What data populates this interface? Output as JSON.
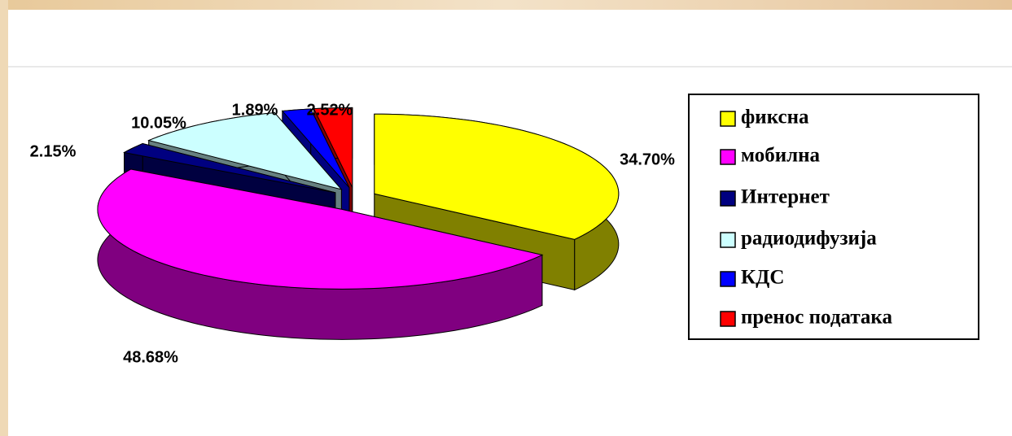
{
  "chart_data": {
    "type": "pie",
    "three_d": true,
    "exploded": true,
    "categories": [
      "фиксна",
      "мобилна",
      "Интернет",
      "радиодифузија",
      "КДС",
      "пренос података"
    ],
    "values": [
      34.7,
      48.68,
      2.15,
      10.05,
      1.89,
      2.52
    ],
    "value_labels": [
      "34.70%",
      "48.68%",
      "2.15%",
      "10.05%",
      "1.89%",
      "2.52%"
    ],
    "colors": [
      "#ffff00",
      "#ff00ff",
      "#000080",
      "#ccffff",
      "#0000ff",
      "#ff0000"
    ],
    "legend": "right"
  }
}
